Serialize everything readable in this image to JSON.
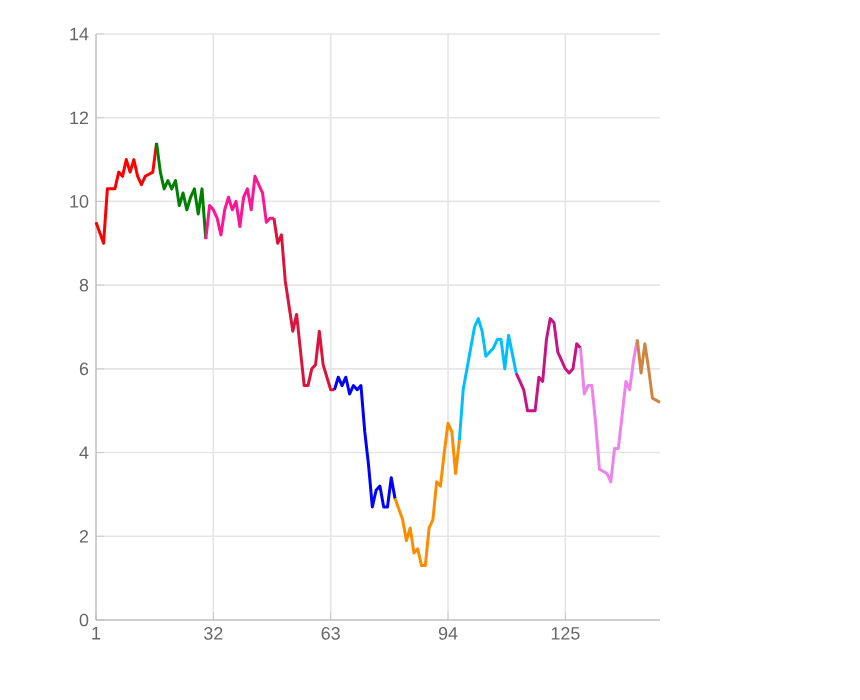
{
  "chart_data": {
    "type": "line",
    "xlim": [
      1,
      150
    ],
    "xticks": [
      1,
      32,
      63,
      94,
      125
    ],
    "ylim": [
      0,
      14
    ],
    "yticks": [
      0,
      2,
      4,
      6,
      8,
      10,
      12,
      14
    ],
    "grid": true,
    "marker": "none",
    "line_style": "solid",
    "series": [
      {
        "color": "#ff0000",
        "x": [
          1,
          3,
          4,
          6,
          7,
          8,
          9,
          10,
          11,
          12,
          13,
          14,
          16,
          17
        ],
        "values": [
          9.5,
          9.0,
          10.3,
          10.3,
          10.7,
          10.6,
          11.0,
          10.7,
          11.0,
          10.6,
          10.4,
          10.6,
          10.7,
          11.4
        ]
      },
      {
        "color": "#008000",
        "x": [
          17,
          18,
          19,
          20,
          21,
          22,
          23,
          24,
          25,
          26,
          27,
          28,
          29,
          30
        ],
        "values": [
          11.4,
          10.7,
          10.3,
          10.5,
          10.3,
          10.5,
          9.9,
          10.2,
          9.8,
          10.1,
          10.3,
          9.7,
          10.3,
          9.1
        ]
      },
      {
        "color": "#ff1493",
        "x": [
          30,
          31,
          32,
          33,
          34,
          35,
          36,
          37,
          38,
          39,
          40,
          41,
          42,
          43,
          45,
          46,
          47,
          48
        ],
        "values": [
          9.1,
          9.9,
          9.8,
          9.6,
          9.2,
          9.8,
          10.1,
          9.8,
          10.0,
          9.4,
          10.1,
          10.3,
          9.8,
          10.6,
          10.2,
          9.5,
          9.6,
          9.6
        ]
      },
      {
        "color": "#dc143c",
        "x": [
          48,
          49,
          50,
          51,
          53,
          54,
          56,
          57,
          58,
          59,
          60,
          61,
          62,
          63,
          64
        ],
        "values": [
          9.6,
          9.0,
          9.2,
          8.1,
          6.9,
          7.3,
          5.6,
          5.6,
          6.0,
          6.1,
          6.9,
          6.1,
          5.8,
          5.5,
          5.5
        ]
      },
      {
        "color": "#0000ff",
        "x": [
          64,
          65,
          66,
          67,
          68,
          69,
          70,
          71,
          72,
          73,
          74,
          75,
          76,
          77,
          78,
          79,
          80
        ],
        "values": [
          5.5,
          5.8,
          5.6,
          5.8,
          5.4,
          5.6,
          5.5,
          5.6,
          4.5,
          3.7,
          2.7,
          3.1,
          3.2,
          2.7,
          2.7,
          3.4,
          2.9
        ]
      },
      {
        "color": "#ff8c00",
        "x": [
          80,
          82,
          83,
          84,
          85,
          86,
          87,
          88,
          89,
          90,
          91,
          92,
          93,
          94,
          95,
          96,
          97
        ],
        "values": [
          2.9,
          2.4,
          1.9,
          2.2,
          1.6,
          1.7,
          1.3,
          1.3,
          2.2,
          2.4,
          3.3,
          3.2,
          4.0,
          4.7,
          4.5,
          3.5,
          4.3
        ]
      },
      {
        "color": "#00bfff",
        "x": [
          97,
          98,
          99,
          101,
          102,
          103,
          104,
          106,
          107,
          108,
          109,
          110,
          112
        ],
        "values": [
          4.3,
          5.5,
          6.0,
          7.0,
          7.2,
          6.9,
          6.3,
          6.5,
          6.7,
          6.7,
          6.0,
          6.8,
          5.9
        ]
      },
      {
        "color": "#c71585",
        "x": [
          112,
          113,
          114,
          115,
          117,
          118,
          119,
          120,
          121,
          122,
          123,
          125,
          126,
          127,
          128,
          129
        ],
        "values": [
          5.9,
          5.7,
          5.5,
          5.0,
          5.0,
          5.8,
          5.7,
          6.7,
          7.2,
          7.1,
          6.4,
          6.0,
          5.9,
          6.0,
          6.6,
          6.5
        ]
      },
      {
        "color": "#ee82ee",
        "x": [
          129,
          130,
          131,
          132,
          133,
          134,
          136,
          137,
          138,
          139,
          140,
          141,
          142,
          143,
          144
        ],
        "values": [
          6.5,
          5.4,
          5.6,
          5.6,
          4.7,
          3.6,
          3.5,
          3.3,
          4.1,
          4.1,
          4.9,
          5.7,
          5.5,
          6.2,
          6.7
        ]
      },
      {
        "color": "#cd853f",
        "x": [
          144,
          145,
          146,
          147,
          148,
          150
        ],
        "values": [
          6.7,
          5.9,
          6.6,
          6.0,
          5.3,
          5.2
        ]
      }
    ]
  }
}
